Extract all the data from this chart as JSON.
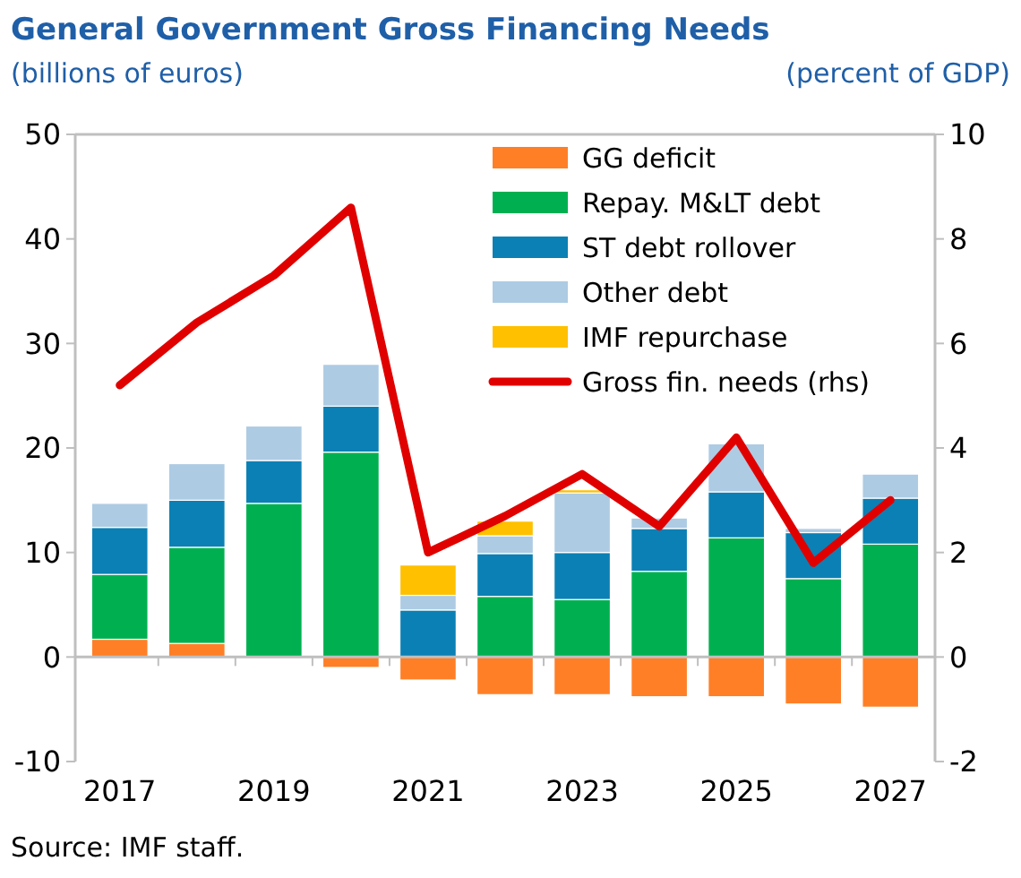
{
  "chart_data": {
    "type": "bar",
    "title": "General Government Gross Financing Needs",
    "ylabel": "(billions of euros)",
    "y2label": "(percent of GDP)",
    "annotations": [
      "Source: IMF staff."
    ],
    "categories": [
      "2017",
      null,
      "2019",
      null,
      "2021",
      null,
      "2023",
      null,
      "2025",
      null,
      "2027"
    ],
    "stacked": true,
    "legend": "top right",
    "ylim": [
      -10,
      50
    ],
    "yticks": [
      -10,
      0,
      10,
      20,
      30,
      40,
      50
    ],
    "y2lim": [
      -2,
      10
    ],
    "y2ticks": [
      -2,
      0,
      2,
      4,
      6,
      8,
      10
    ],
    "series": [
      {
        "name": "GG deficit",
        "color": "#ff7f27",
        "values": [
          1.7,
          1.3,
          0,
          -1.0,
          -2.2,
          -3.6,
          -3.6,
          -3.8,
          -3.8,
          -4.5,
          -4.8
        ]
      },
      {
        "name": "Repay. M&LT debt",
        "color": "#00b050",
        "values": [
          6.2,
          9.2,
          14.7,
          19.6,
          0,
          5.8,
          5.5,
          8.2,
          11.4,
          7.5,
          10.8
        ]
      },
      {
        "name": "ST debt rollover",
        "color": "#0b80b4",
        "values": [
          4.5,
          4.5,
          4.1,
          4.4,
          4.5,
          4.1,
          4.5,
          4.1,
          4.4,
          4.4,
          4.4
        ]
      },
      {
        "name": "Other debt",
        "color": "#adcbe3",
        "values": [
          2.3,
          3.5,
          3.3,
          4.0,
          1.4,
          1.7,
          5.7,
          1.0,
          4.6,
          0.4,
          2.3
        ]
      },
      {
        "name": "IMF repurchase",
        "color": "#ffc000",
        "values": [
          0,
          0,
          0,
          0,
          2.9,
          1.4,
          0.3,
          0,
          0,
          0,
          0
        ]
      },
      {
        "name": "Gross fin. needs (rhs)",
        "type": "line",
        "axis": "y2",
        "color": "#e00000",
        "values": [
          5.2,
          6.4,
          7.3,
          8.6,
          2.0,
          2.7,
          3.5,
          2.5,
          4.2,
          1.8,
          3.0
        ]
      }
    ]
  }
}
